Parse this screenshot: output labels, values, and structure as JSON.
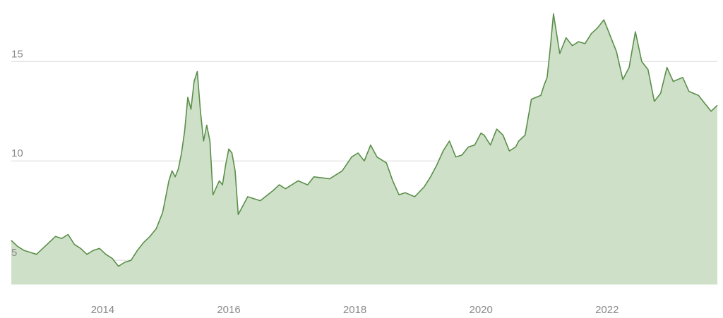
{
  "chart_data": {
    "type": "area",
    "title": "",
    "xlabel": "",
    "ylabel": "",
    "grid": "horizontal",
    "legend": "none",
    "xlim": [
      2012.55,
      2023.75
    ],
    "ylim": [
      3.8,
      17.6
    ],
    "y_ticks": [
      {
        "value": 5,
        "label": "5"
      },
      {
        "value": 10,
        "label": "10"
      },
      {
        "value": 15,
        "label": "15"
      }
    ],
    "x_ticks": [
      {
        "value": 2014,
        "label": "2014"
      },
      {
        "value": 2016,
        "label": "2016"
      },
      {
        "value": 2018,
        "label": "2018"
      },
      {
        "value": 2020,
        "label": "2020"
      },
      {
        "value": 2022,
        "label": "2022"
      }
    ],
    "colors": {
      "line": "#5a8f4a",
      "fill": "#cfe0c8",
      "grid": "#d9d9d9",
      "tick_text": "#8a8a8a"
    },
    "series": [
      {
        "x": [
          2012.55,
          2012.65,
          2012.75,
          2012.85,
          2012.95,
          2013.05,
          2013.15,
          2013.25,
          2013.35,
          2013.45,
          2013.55,
          2013.65,
          2013.75,
          2013.85,
          2013.95,
          2014.05,
          2014.15,
          2014.25,
          2014.35,
          2014.45,
          2014.55,
          2014.65,
          2014.75,
          2014.85,
          2014.95,
          2015.0,
          2015.05,
          2015.1,
          2015.15,
          2015.2,
          2015.25,
          2015.3,
          2015.35,
          2015.4,
          2015.45,
          2015.5,
          2015.55,
          2015.6,
          2015.65,
          2015.7,
          2015.75,
          2015.85,
          2015.9,
          2015.95,
          2016.0,
          2016.05,
          2016.1,
          2016.15,
          2016.3,
          2016.5,
          2016.7,
          2016.8,
          2016.9,
          2017.1,
          2017.25,
          2017.35,
          2017.6,
          2017.8,
          2017.95,
          2018.05,
          2018.15,
          2018.25,
          2018.35,
          2018.5,
          2018.6,
          2018.7,
          2018.8,
          2018.95,
          2019.1,
          2019.2,
          2019.3,
          2019.4,
          2019.5,
          2019.6,
          2019.7,
          2019.8,
          2019.9,
          2020.0,
          2020.05,
          2020.15,
          2020.25,
          2020.35,
          2020.45,
          2020.55,
          2020.6,
          2020.7,
          2020.8,
          2020.95,
          2021.0,
          2021.05,
          2021.1,
          2021.15,
          2021.25,
          2021.35,
          2021.45,
          2021.55,
          2021.65,
          2021.75,
          2021.85,
          2021.95,
          2022.05,
          2022.15,
          2022.25,
          2022.35,
          2022.45,
          2022.55,
          2022.65,
          2022.75,
          2022.85,
          2022.95,
          2023.05,
          2023.2,
          2023.3,
          2023.45,
          2023.55,
          2023.65,
          2023.75
        ],
        "y": [
          6.0,
          5.7,
          5.5,
          5.4,
          5.3,
          5.6,
          5.9,
          6.2,
          6.1,
          6.3,
          5.8,
          5.6,
          5.3,
          5.5,
          5.6,
          5.3,
          5.1,
          4.7,
          4.9,
          5.0,
          5.5,
          5.9,
          6.2,
          6.6,
          7.4,
          8.2,
          9.0,
          9.5,
          9.2,
          9.6,
          10.4,
          11.5,
          13.2,
          12.6,
          14.0,
          14.5,
          12.5,
          11.0,
          11.8,
          11.0,
          8.3,
          9.0,
          8.8,
          9.8,
          10.6,
          10.4,
          9.5,
          7.3,
          8.2,
          8.0,
          8.5,
          8.8,
          8.6,
          9.0,
          8.8,
          9.2,
          9.1,
          9.5,
          10.2,
          10.4,
          10.0,
          10.8,
          10.2,
          9.9,
          9.0,
          8.3,
          8.4,
          8.2,
          8.7,
          9.2,
          9.8,
          10.5,
          11.0,
          10.2,
          10.3,
          10.7,
          10.8,
          11.4,
          11.3,
          10.8,
          11.6,
          11.3,
          10.5,
          10.7,
          11.0,
          11.3,
          13.1,
          13.3,
          13.8,
          14.2,
          15.7,
          17.4,
          15.4,
          16.2,
          15.8,
          16.0,
          15.9,
          16.4,
          16.7,
          17.1,
          16.3,
          15.5,
          14.1,
          14.7,
          16.5,
          15.0,
          14.6,
          13.0,
          13.4,
          14.7,
          14.0,
          14.2,
          13.5,
          13.3,
          12.9,
          12.5,
          12.8
        ]
      }
    ]
  }
}
